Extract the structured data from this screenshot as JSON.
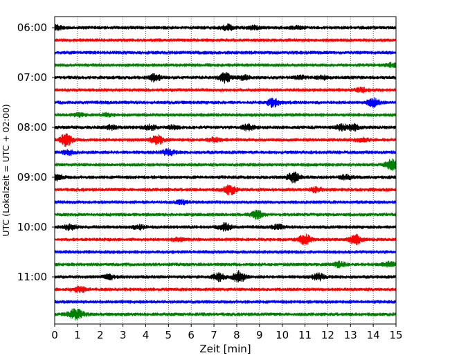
{
  "chart_data": {
    "type": "line",
    "title": "",
    "xlabel": "Zeit  [min]",
    "ylabel": "UTC (Lokalzeit = UTC + 02:00)",
    "xlim": [
      0,
      15
    ],
    "x_ticks": [
      0,
      1,
      2,
      3,
      4,
      5,
      6,
      7,
      8,
      9,
      10,
      11,
      12,
      13,
      14,
      15
    ],
    "x_tick_labels": [
      "0",
      "1",
      "2",
      "3",
      "4",
      "5",
      "6",
      "7",
      "8",
      "9",
      "10",
      "11",
      "12",
      "13",
      "14",
      "15"
    ],
    "y_tick_labels": [
      "06:00",
      "07:00",
      "08:00",
      "09:00",
      "10:00",
      "11:00"
    ],
    "y_tick_rows": [
      0,
      4,
      8,
      12,
      16,
      20
    ],
    "grid": {
      "vertical": true,
      "style": "dotted",
      "horizontal": false
    },
    "legend": "none",
    "trace_colors": [
      "#000000",
      "#ff0000",
      "#0000ff",
      "#008000"
    ],
    "series": [
      {
        "start": "06:00",
        "events": [
          {
            "x": 0.1,
            "amp": 0.6
          },
          {
            "x": 7.6,
            "amp": 0.9
          },
          {
            "x": 8.7,
            "amp": 0.5
          },
          {
            "x": 10.7,
            "amp": 0.5
          }
        ]
      },
      {
        "start": "06:15",
        "events": []
      },
      {
        "start": "06:30",
        "events": []
      },
      {
        "start": "06:45",
        "events": [
          {
            "x": 14.8,
            "amp": 0.5
          }
        ]
      },
      {
        "start": "07:00",
        "events": [
          {
            "x": 4.4,
            "amp": 1.3
          },
          {
            "x": 7.5,
            "amp": 1.5
          },
          {
            "x": 8.3,
            "amp": 0.6
          },
          {
            "x": 10.8,
            "amp": 0.5
          },
          {
            "x": 11.8,
            "amp": 0.5
          }
        ]
      },
      {
        "start": "07:15",
        "events": [
          {
            "x": 13.5,
            "amp": 0.6
          }
        ]
      },
      {
        "start": "07:30",
        "events": [
          {
            "x": 9.6,
            "amp": 1.4
          },
          {
            "x": 14.0,
            "amp": 1.3
          }
        ]
      },
      {
        "start": "07:45",
        "events": [
          {
            "x": 1.1,
            "amp": 0.4
          },
          {
            "x": 2.3,
            "amp": 0.4
          }
        ]
      },
      {
        "start": "08:00",
        "events": [
          {
            "x": 2.5,
            "amp": 0.6
          },
          {
            "x": 4.2,
            "amp": 0.8
          },
          {
            "x": 5.2,
            "amp": 0.5
          },
          {
            "x": 8.5,
            "amp": 0.9
          },
          {
            "x": 12.6,
            "amp": 0.8
          },
          {
            "x": 13.1,
            "amp": 1.0
          }
        ]
      },
      {
        "start": "08:15",
        "events": [
          {
            "x": 0.5,
            "amp": 2.0
          },
          {
            "x": 4.5,
            "amp": 1.5
          },
          {
            "x": 7.0,
            "amp": 0.6
          },
          {
            "x": 13.5,
            "amp": 0.6
          }
        ]
      },
      {
        "start": "08:30",
        "events": [
          {
            "x": 0.6,
            "amp": 0.7
          },
          {
            "x": 5.0,
            "amp": 0.9
          }
        ]
      },
      {
        "start": "08:45",
        "events": [
          {
            "x": 14.8,
            "amp": 1.6
          }
        ]
      },
      {
        "start": "09:00",
        "events": [
          {
            "x": 0.1,
            "amp": 0.9
          },
          {
            "x": 10.5,
            "amp": 1.6
          },
          {
            "x": 12.8,
            "amp": 0.7
          }
        ]
      },
      {
        "start": "09:15",
        "events": [
          {
            "x": 7.7,
            "amp": 1.5
          },
          {
            "x": 11.5,
            "amp": 0.7
          }
        ]
      },
      {
        "start": "09:30",
        "events": [
          {
            "x": 5.6,
            "amp": 0.5
          }
        ]
      },
      {
        "start": "09:45",
        "events": [
          {
            "x": 8.9,
            "amp": 1.2
          }
        ]
      },
      {
        "start": "10:00",
        "events": [
          {
            "x": 0.7,
            "amp": 0.9
          },
          {
            "x": 3.7,
            "amp": 0.6
          },
          {
            "x": 7.5,
            "amp": 1.2
          },
          {
            "x": 9.8,
            "amp": 0.7
          }
        ]
      },
      {
        "start": "10:15",
        "events": [
          {
            "x": 5.4,
            "amp": 0.5
          },
          {
            "x": 11.0,
            "amp": 1.6
          },
          {
            "x": 13.2,
            "amp": 1.5
          }
        ]
      },
      {
        "start": "10:30",
        "events": []
      },
      {
        "start": "10:45",
        "events": [
          {
            "x": 12.5,
            "amp": 0.8
          },
          {
            "x": 14.7,
            "amp": 0.7
          }
        ]
      },
      {
        "start": "11:00",
        "events": [
          {
            "x": 2.4,
            "amp": 0.7
          },
          {
            "x": 7.2,
            "amp": 1.3
          },
          {
            "x": 8.1,
            "amp": 1.8
          },
          {
            "x": 11.6,
            "amp": 1.0
          }
        ]
      },
      {
        "start": "11:15",
        "events": [
          {
            "x": 1.1,
            "amp": 1.0
          }
        ]
      },
      {
        "start": "11:30",
        "events": []
      },
      {
        "start": "11:45",
        "events": [
          {
            "x": 0.8,
            "amp": 1.2
          },
          {
            "x": 1.1,
            "amp": 1.0
          }
        ]
      }
    ]
  }
}
